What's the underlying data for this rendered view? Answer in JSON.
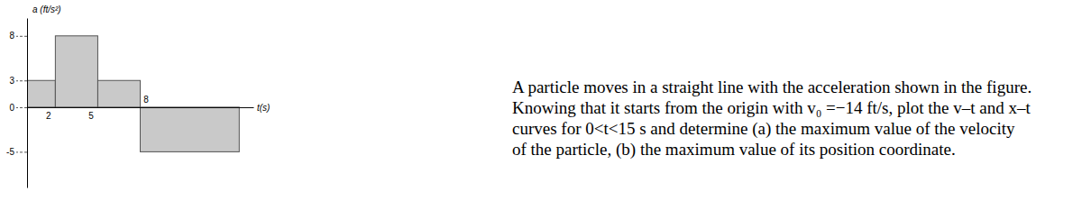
{
  "chart_data": {
    "type": "bar",
    "y_label": "a (ft/s²)",
    "x_label": "t(s)",
    "bins": [
      0,
      2,
      5,
      8,
      15
    ],
    "values": [
      3,
      8,
      3,
      -5
    ],
    "color": "#c9c9c9",
    "xlim": [
      0,
      16
    ],
    "xticks": [
      2,
      5,
      8
    ],
    "ylim": [
      -9,
      10
    ],
    "yticks": [
      8,
      3,
      0,
      -5
    ],
    "grid": false,
    "annotations": [
      "A particle moves in a straight line with the acceleration shown in the figure.",
      "Knowing that it starts from the origin with v₀ =−14 ft/s, plot the v–t and x–t",
      "curves for 0<t<15 s and determine (a) the maximum value of the velocity",
      "of the particle, (b) the maximum value of its position coordinate."
    ]
  }
}
